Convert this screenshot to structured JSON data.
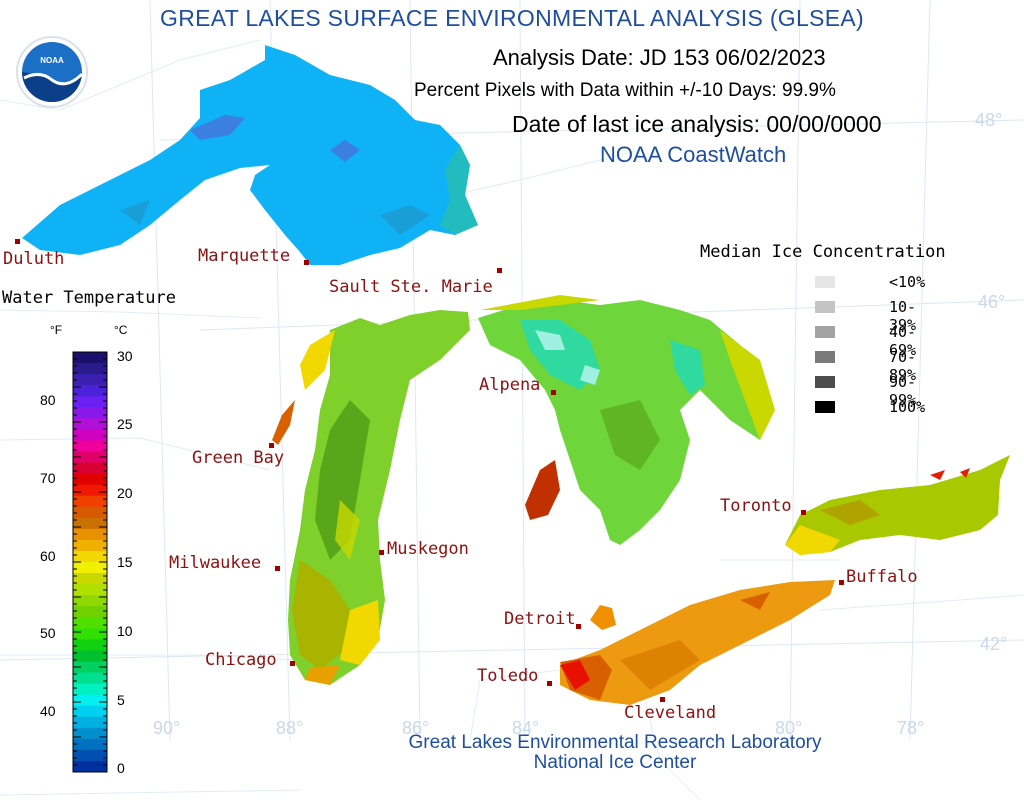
{
  "title": "GREAT LAKES SURFACE ENVIRONMENTAL ANALYSIS (GLSEA)",
  "analysis_date": "Analysis Date:  JD 153 06/02/2023",
  "percent_pixels": "Percent Pixels with Data within +/-10 Days:  99.9%",
  "last_ice": "Date of last ice analysis: 00/00/0000",
  "source": "NOAA CoastWatch",
  "logo_text": "NOAA",
  "credits": {
    "line1": "Great Lakes Environmental Research Laboratory",
    "line2": "National Ice Center"
  },
  "cities": {
    "duluth": "Duluth",
    "marquette": "Marquette",
    "sault": "Sault Ste. Marie",
    "alpena": "Alpena",
    "green_bay": "Green Bay",
    "muskegon": "Muskegon",
    "milwaukee": "Milwaukee",
    "chicago": "Chicago",
    "toronto": "Toronto",
    "buffalo": "Buffalo",
    "detroit": "Detroit",
    "toledo": "Toledo",
    "cleveland": "Cleveland"
  },
  "graticule": {
    "lat_48": "48°",
    "lat_46": "46°",
    "lat_42": "42°",
    "lon_90": "90°",
    "lon_88": "88°",
    "lon_86": "86°",
    "lon_84": "84°",
    "lon_80": "80°",
    "lon_78": "78°"
  },
  "ice_legend": {
    "title": "Median Ice Concentration",
    "items": [
      {
        "label": "<10%",
        "color": "#e6e6e6"
      },
      {
        "label": "10-39%",
        "color": "#c4c4c4"
      },
      {
        "label": "40-69%",
        "color": "#a3a3a3"
      },
      {
        "label": "70-89%",
        "color": "#7a7a7a"
      },
      {
        "label": "90-99%",
        "color": "#4d4d4d"
      },
      {
        "label": "100%",
        "color": "#000000"
      }
    ]
  },
  "temp_legend": {
    "title": "Water Temperature",
    "unit_f": "°F",
    "unit_c": "°C",
    "f_ticks": [
      "80",
      "70",
      "60",
      "50",
      "40"
    ],
    "c_ticks": [
      "30",
      "25",
      "20",
      "15",
      "10",
      "5",
      "0"
    ],
    "colors": [
      "#1a0f6b",
      "#2b1a8c",
      "#3a1fb0",
      "#4a22d8",
      "#6a20f0",
      "#8a18e8",
      "#b010d8",
      "#d000c0",
      "#f0009a",
      "#e0006a",
      "#d80030",
      "#e00000",
      "#f01800",
      "#f04000",
      "#d85a00",
      "#c87000",
      "#e89000",
      "#f0b000",
      "#f0d800",
      "#f0f000",
      "#c8d800",
      "#b0e000",
      "#90d800",
      "#70d000",
      "#50e000",
      "#30e000",
      "#10d010",
      "#00c030",
      "#00d060",
      "#00e090",
      "#00f0c0",
      "#00f0f0",
      "#00d0f0",
      "#00b0e0",
      "#0090d0",
      "#0070c0",
      "#0050b0",
      "#0030a0"
    ]
  }
}
